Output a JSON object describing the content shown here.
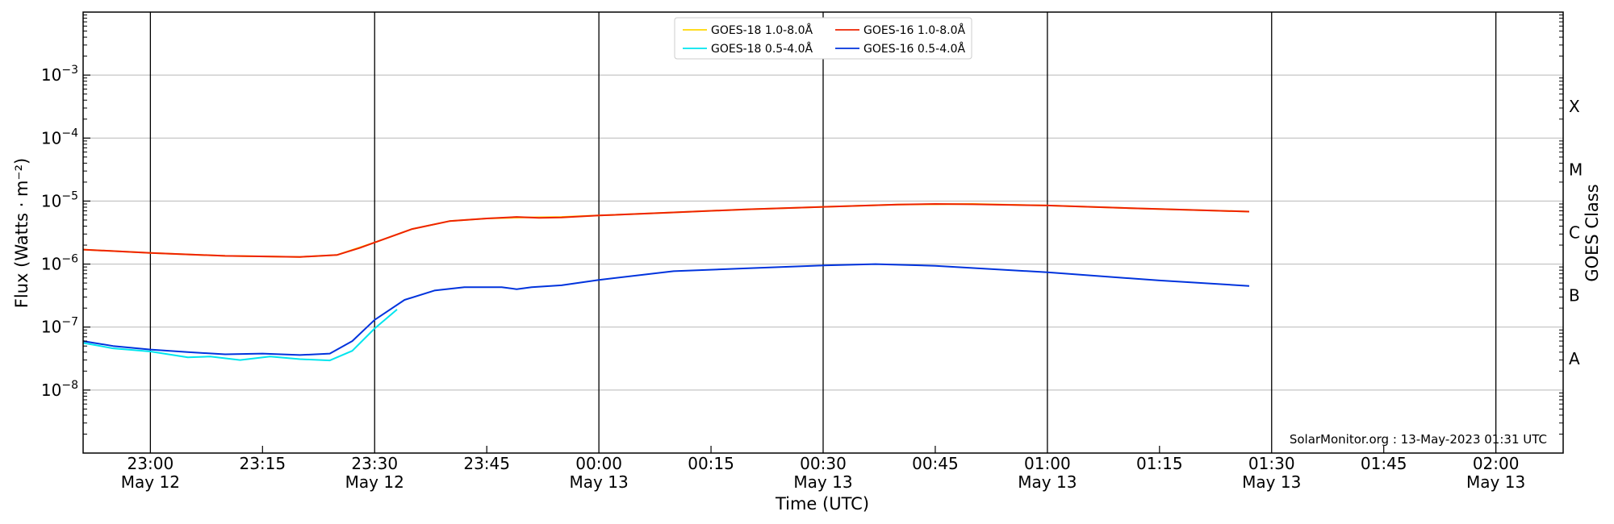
{
  "chart_data": {
    "type": "line",
    "title": "",
    "xlabel": "Time (UTC)",
    "ylabel": "Flux (Watts · m⁻²)",
    "y2label": "GOES Class",
    "yscale": "log",
    "ylim": [
      1e-09,
      0.01
    ],
    "xlim": [
      "2023-05-12 22:51",
      "2023-05-13 02:09"
    ],
    "grid": "horizontal at decades; vertical at half-hours",
    "legend_position": "top-center",
    "credit": "SolarMonitor.org : 13-May-2023 01:31 UTC",
    "y_ticks": [
      {
        "value": 1e-08,
        "base": "10",
        "exp": "−8"
      },
      {
        "value": 1e-07,
        "base": "10",
        "exp": "−7"
      },
      {
        "value": 1e-06,
        "base": "10",
        "exp": "−6"
      },
      {
        "value": 1e-05,
        "base": "10",
        "exp": "−5"
      },
      {
        "value": 0.0001,
        "base": "10",
        "exp": "−4"
      },
      {
        "value": 0.001,
        "base": "10",
        "exp": "−3"
      }
    ],
    "goes_classes": [
      {
        "label": "A",
        "value": 3.16e-08
      },
      {
        "label": "B",
        "value": 3.16e-07
      },
      {
        "label": "C",
        "value": 3.16e-06
      },
      {
        "label": "M",
        "value": 3.16e-05
      },
      {
        "label": "X",
        "value": 0.000316
      }
    ],
    "x_ticks": [
      {
        "time": "2023-05-12 23:00",
        "label": "23:00",
        "sublabel": "May 12"
      },
      {
        "time": "2023-05-12 23:15",
        "label": "23:15",
        "sublabel": ""
      },
      {
        "time": "2023-05-12 23:30",
        "label": "23:30",
        "sublabel": "May 12"
      },
      {
        "time": "2023-05-12 23:45",
        "label": "23:45",
        "sublabel": ""
      },
      {
        "time": "2023-05-13 00:00",
        "label": "00:00",
        "sublabel": "May 13"
      },
      {
        "time": "2023-05-13 00:15",
        "label": "00:15",
        "sublabel": ""
      },
      {
        "time": "2023-05-13 00:30",
        "label": "00:30",
        "sublabel": "May 13"
      },
      {
        "time": "2023-05-13 00:45",
        "label": "00:45",
        "sublabel": ""
      },
      {
        "time": "2023-05-13 01:00",
        "label": "01:00",
        "sublabel": "May 13"
      },
      {
        "time": "2023-05-13 01:15",
        "label": "01:15",
        "sublabel": ""
      },
      {
        "time": "2023-05-13 01:30",
        "label": "01:30",
        "sublabel": "May 13"
      },
      {
        "time": "2023-05-13 01:45",
        "label": "01:45",
        "sublabel": ""
      },
      {
        "time": "2023-05-13 02:00",
        "label": "02:00",
        "sublabel": "May 13"
      }
    ],
    "series": [
      {
        "name": "GOES-18 1.0-8.0Å",
        "color": "#ffd700",
        "x": [
          "2023-05-12 22:51",
          "2023-05-12 23:00",
          "2023-05-12 23:10",
          "2023-05-12 23:20",
          "2023-05-12 23:25",
          "2023-05-12 23:30",
          "2023-05-12 23:35",
          "2023-05-12 23:40",
          "2023-05-12 23:45",
          "2023-05-12 23:50",
          "2023-05-12 23:55",
          "2023-05-13 00:00",
          "2023-05-13 00:10",
          "2023-05-13 00:20",
          "2023-05-13 00:30",
          "2023-05-13 00:40",
          "2023-05-13 00:50",
          "2023-05-13 01:00",
          "2023-05-13 01:10",
          "2023-05-13 01:20",
          "2023-05-13 01:27"
        ],
        "y": [
          1.7e-06,
          1.5e-06,
          1.35e-06,
          1.3e-06,
          1.4e-06,
          2.2e-06,
          3.6e-06,
          4.8e-06,
          5.3e-06,
          5.5e-06,
          5.6e-06,
          5.9e-06,
          6.6e-06,
          7.4e-06,
          8.1e-06,
          8.8e-06,
          9e-06,
          8.5e-06,
          7.8e-06,
          7.2e-06,
          6.8e-06
        ]
      },
      {
        "name": "GOES-18 0.5-4.0Å",
        "color": "#00e5ee",
        "x": [
          "2023-05-12 22:51",
          "2023-05-12 22:55",
          "2023-05-12 23:00",
          "2023-05-12 23:05",
          "2023-05-12 23:08",
          "2023-05-12 23:12",
          "2023-05-12 23:16",
          "2023-05-12 23:20",
          "2023-05-12 23:24",
          "2023-05-12 23:27",
          "2023-05-12 23:30",
          "2023-05-12 23:33"
        ],
        "y": [
          5.6e-08,
          4.6e-08,
          4.1e-08,
          3.3e-08,
          3.4e-08,
          3e-08,
          3.4e-08,
          3.1e-08,
          2.95e-08,
          4.2e-08,
          9.5e-08,
          1.9e-07
        ]
      },
      {
        "name": "GOES-16 1.0-8.0Å",
        "color": "#ee2200",
        "x": [
          "2023-05-12 22:51",
          "2023-05-12 23:00",
          "2023-05-12 23:10",
          "2023-05-12 23:20",
          "2023-05-12 23:25",
          "2023-05-12 23:28",
          "2023-05-12 23:30",
          "2023-05-12 23:35",
          "2023-05-12 23:40",
          "2023-05-12 23:45",
          "2023-05-12 23:49",
          "2023-05-12 23:52",
          "2023-05-12 23:55",
          "2023-05-13 00:00",
          "2023-05-13 00:10",
          "2023-05-13 00:20",
          "2023-05-13 00:30",
          "2023-05-13 00:40",
          "2023-05-13 00:45",
          "2023-05-13 00:50",
          "2023-05-13 01:00",
          "2023-05-13 01:10",
          "2023-05-13 01:20",
          "2023-05-13 01:27"
        ],
        "y": [
          1.7e-06,
          1.5e-06,
          1.35e-06,
          1.3e-06,
          1.4e-06,
          1.8e-06,
          2.2e-06,
          3.6e-06,
          4.8e-06,
          5.3e-06,
          5.6e-06,
          5.4e-06,
          5.5e-06,
          5.9e-06,
          6.6e-06,
          7.4e-06,
          8.1e-06,
          8.8e-06,
          9e-06,
          8.9e-06,
          8.5e-06,
          7.8e-06,
          7.2e-06,
          6.8e-06
        ]
      },
      {
        "name": "GOES-16 0.5-4.0Å",
        "color": "#0033dd",
        "x": [
          "2023-05-12 22:51",
          "2023-05-12 22:55",
          "2023-05-12 23:00",
          "2023-05-12 23:05",
          "2023-05-12 23:10",
          "2023-05-12 23:15",
          "2023-05-12 23:20",
          "2023-05-12 23:24",
          "2023-05-12 23:27",
          "2023-05-12 23:30",
          "2023-05-12 23:34",
          "2023-05-12 23:38",
          "2023-05-12 23:42",
          "2023-05-12 23:47",
          "2023-05-12 23:49",
          "2023-05-12 23:51",
          "2023-05-12 23:55",
          "2023-05-13 00:00",
          "2023-05-13 00:10",
          "2023-05-13 00:20",
          "2023-05-13 00:30",
          "2023-05-13 00:37",
          "2023-05-13 00:45",
          "2023-05-13 01:00",
          "2023-05-13 01:15",
          "2023-05-13 01:27"
        ],
        "y": [
          6e-08,
          5e-08,
          4.4e-08,
          4e-08,
          3.7e-08,
          3.8e-08,
          3.6e-08,
          3.8e-08,
          6e-08,
          1.3e-07,
          2.7e-07,
          3.8e-07,
          4.3e-07,
          4.3e-07,
          4e-07,
          4.3e-07,
          4.6e-07,
          5.6e-07,
          7.7e-07,
          8.6e-07,
          9.5e-07,
          1e-06,
          9.4e-07,
          7.4e-07,
          5.5e-07,
          4.5e-07
        ]
      }
    ]
  }
}
